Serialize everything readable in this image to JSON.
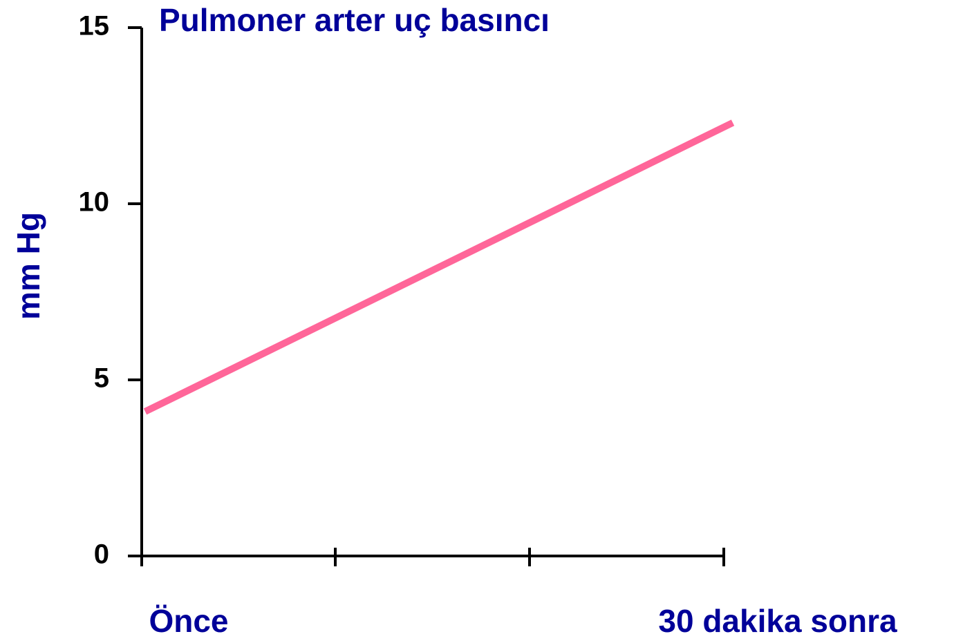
{
  "chart_data": {
    "type": "line",
    "title": "Pulmoner arter uç basıncı",
    "y_label": "mm Hg",
    "categories": [
      "Önce",
      "30 dakika sonra"
    ],
    "series": [
      {
        "name": "Pulmoner arter uç basıncı",
        "color": "#ff6699",
        "values": [
          4.1,
          12.3
        ]
      }
    ],
    "ylim": [
      0,
      15
    ],
    "yticks": [
      0,
      5,
      10,
      15
    ],
    "grid": false
  }
}
